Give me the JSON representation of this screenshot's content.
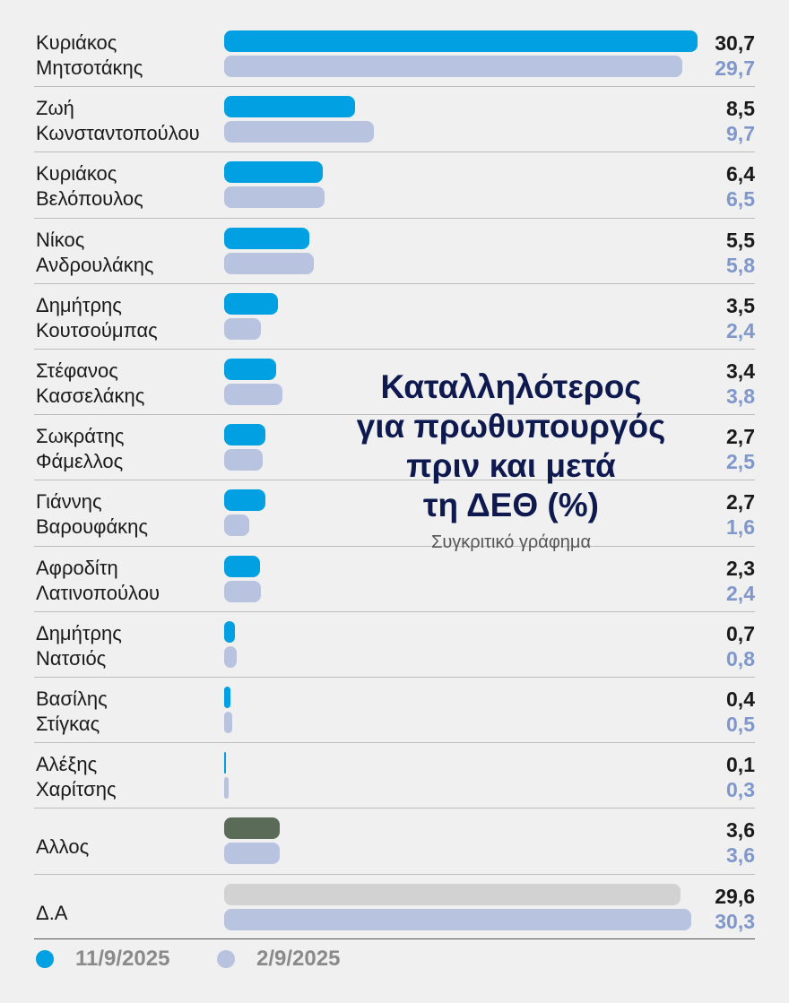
{
  "chart_data": {
    "type": "bar",
    "title": "Καταλληλότερος\nγια πρωθυπουργός\nπριν και μετά\nτη ΔΕΘ (%)",
    "subtitle": "Συγκριτικό γράφημα",
    "categories": [
      "Κυριάκος\nΜητσοτάκης",
      "Ζωή\nΚωνσταντοπούλου",
      "Κυριάκος\nΒελόπουλος",
      "Νίκος\nΑνδρουλάκης",
      "Δημήτρης\nΚουτσούμπας",
      "Στέφανος\nΚασσελάκης",
      "Σωκράτης\nΦάμελλος",
      "Γιάννης\nΒαρουφάκης",
      "Αφροδίτη\nΛατινοπούλου",
      "Δημήτρης\nΝατσιός",
      "Βασίλης\nΣτίγκας",
      "Αλέξης\nΧαρίτσης",
      "Αλλος",
      "Δ.Α"
    ],
    "series": [
      {
        "name": "11/9/2025",
        "color": "#00a0e3",
        "values": [
          30.7,
          8.5,
          6.4,
          5.5,
          3.5,
          3.4,
          2.7,
          2.7,
          2.3,
          0.7,
          0.4,
          0.1,
          3.6,
          29.6
        ],
        "labels": [
          "30,7",
          "8,5",
          "6,4",
          "5,5",
          "3,5",
          "3,4",
          "2,7",
          "2,7",
          "2,3",
          "0,7",
          "0,4",
          "0,1",
          "3,6",
          "29,6"
        ]
      },
      {
        "name": "2/9/2025",
        "color": "#b7c3df",
        "values": [
          29.7,
          9.7,
          6.5,
          5.8,
          2.4,
          3.8,
          2.5,
          1.6,
          2.4,
          0.8,
          0.5,
          0.3,
          3.6,
          30.3
        ],
        "labels": [
          "29,7",
          "9,7",
          "6,5",
          "5,8",
          "2,4",
          "3,8",
          "2,5",
          "1,6",
          "2,4",
          "0,8",
          "0,5",
          "0,3",
          "3,6",
          "30,3"
        ]
      }
    ],
    "special_colors": {
      "Αλλος": "#5a6b57",
      "Δ.Α": "#d2d2d2"
    },
    "value_label_colors": {
      "11/9/2025": "#1a1a1a",
      "2/9/2025": "#7f97cb"
    },
    "legend_position": "bottom-left",
    "legend_dot_colors": [
      "#00a0e3",
      "#b7c3df"
    ],
    "legend_text_color": "#8a8a8a"
  }
}
